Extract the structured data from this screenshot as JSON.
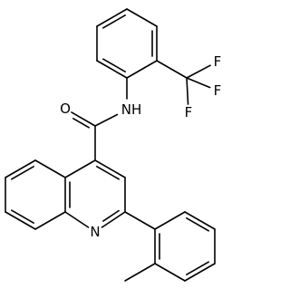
{
  "atoms": [
    "O",
    "NH",
    "F",
    "F",
    "F",
    "N"
  ]
}
